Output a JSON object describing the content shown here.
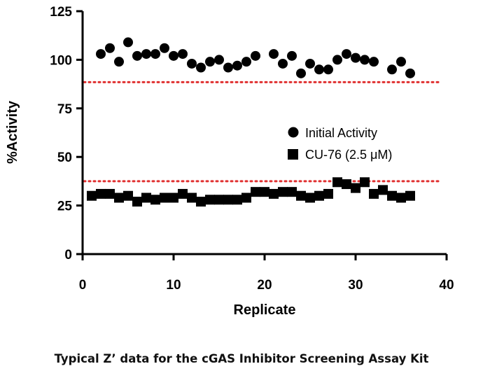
{
  "caption": "Typical Z’ data for the cGAS Inhibitor Screening Assay Kit",
  "chart_data": {
    "type": "scatter",
    "xlabel": "Replicate",
    "ylabel": "%Activity",
    "xlim": [
      0,
      40
    ],
    "ylim": [
      0,
      125
    ],
    "xticks": [
      0,
      10,
      20,
      30,
      40
    ],
    "yticks": [
      0,
      25,
      50,
      75,
      100,
      125
    ],
    "grid": false,
    "legend_position": "center-right",
    "series": [
      {
        "name": "Initial Activity",
        "marker": "circle",
        "color": "#000000",
        "x": [
          2,
          3,
          4,
          5,
          6,
          7,
          8,
          9,
          10,
          11,
          12,
          13,
          14,
          15,
          16,
          17,
          18,
          19,
          21,
          22,
          23,
          24,
          25,
          26,
          27,
          28,
          29,
          30,
          31,
          32,
          34,
          35,
          36
        ],
        "y": [
          103,
          106,
          99,
          109,
          102,
          103,
          103,
          106,
          102,
          103,
          98,
          96,
          99,
          100,
          96,
          97,
          99,
          102,
          103,
          98,
          102,
          93,
          98,
          95,
          95,
          100,
          103,
          101,
          100,
          99,
          95,
          99,
          93
        ]
      },
      {
        "name": "CU-76 (2.5 μM)",
        "marker": "square",
        "color": "#000000",
        "x": [
          1,
          2,
          3,
          4,
          5,
          6,
          7,
          8,
          9,
          10,
          11,
          12,
          13,
          14,
          15,
          16,
          17,
          18,
          19,
          20,
          21,
          22,
          23,
          24,
          25,
          26,
          27,
          28,
          29,
          30,
          31,
          32,
          33,
          34,
          35,
          36
        ],
        "y": [
          30,
          31,
          31,
          29,
          30,
          27,
          29,
          28,
          29,
          29,
          31,
          29,
          27,
          28,
          28,
          28,
          28,
          29,
          32,
          32,
          31,
          32,
          32,
          30,
          29,
          30,
          31,
          37,
          36,
          34,
          37,
          31,
          33,
          30,
          29,
          30
        ]
      }
    ],
    "reference_lines": [
      {
        "y": 88.5,
        "style": "dotted",
        "color": "#e03030"
      },
      {
        "y": 37.5,
        "style": "dotted",
        "color": "#e03030"
      }
    ]
  }
}
